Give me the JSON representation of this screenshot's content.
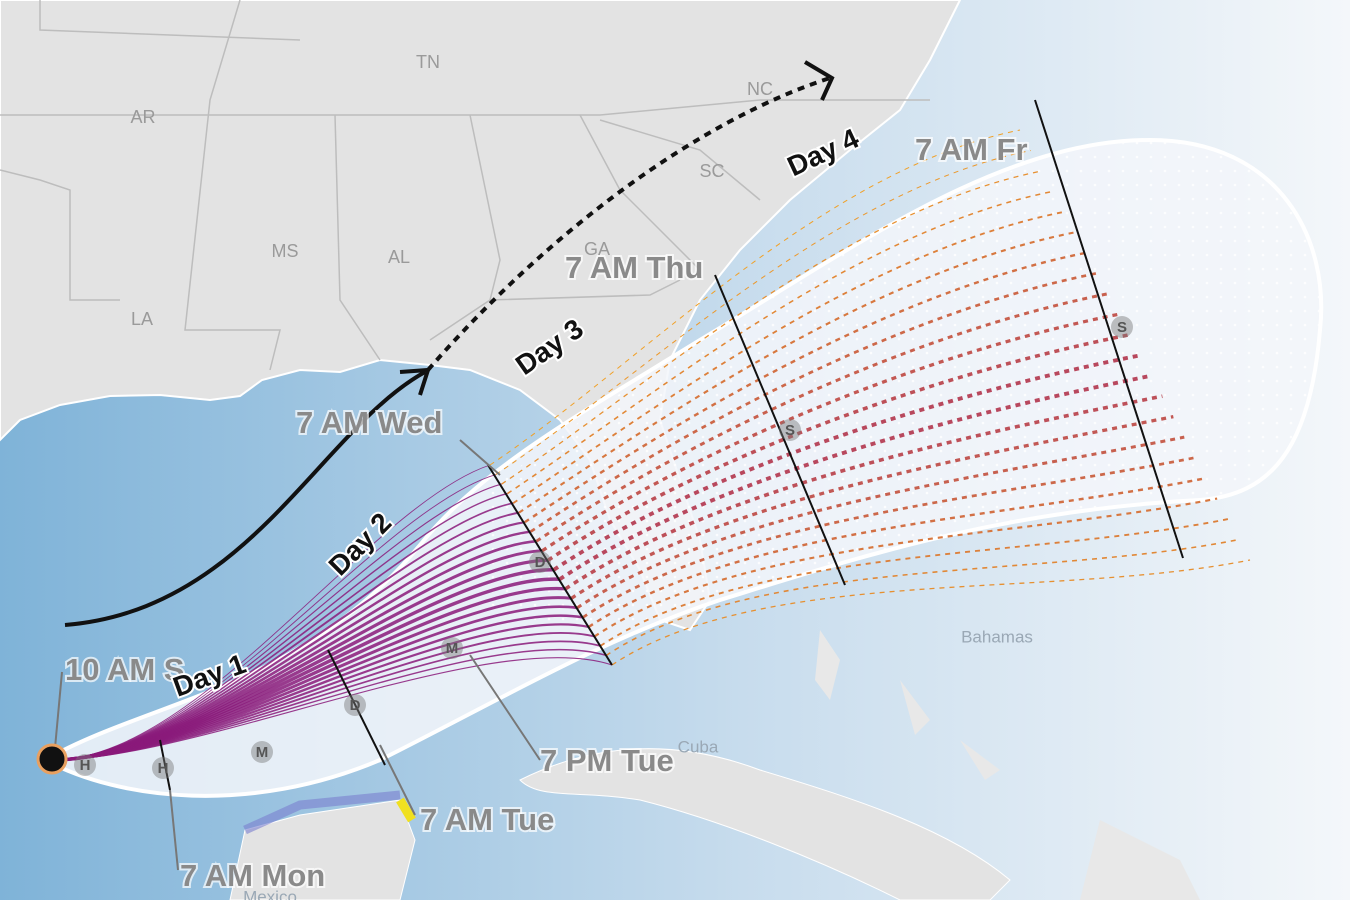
{
  "states": [
    "AR",
    "TN",
    "NC",
    "SC",
    "GA",
    "MS",
    "AL",
    "LA"
  ],
  "places": [
    "Bahamas",
    "Cuba",
    "Mexico"
  ],
  "times": [
    "10 AM S",
    "7 AM Mon",
    "7 AM Tue",
    "7 PM Tue",
    "7 AM Wed",
    "7 AM Thu",
    "7 AM Fr"
  ],
  "days": [
    "Day 1",
    "Day 2",
    "Day 3",
    "Day 4"
  ],
  "storm_markers": [
    "H",
    "H",
    "M",
    "D",
    "M",
    "D",
    "S",
    "S"
  ]
}
